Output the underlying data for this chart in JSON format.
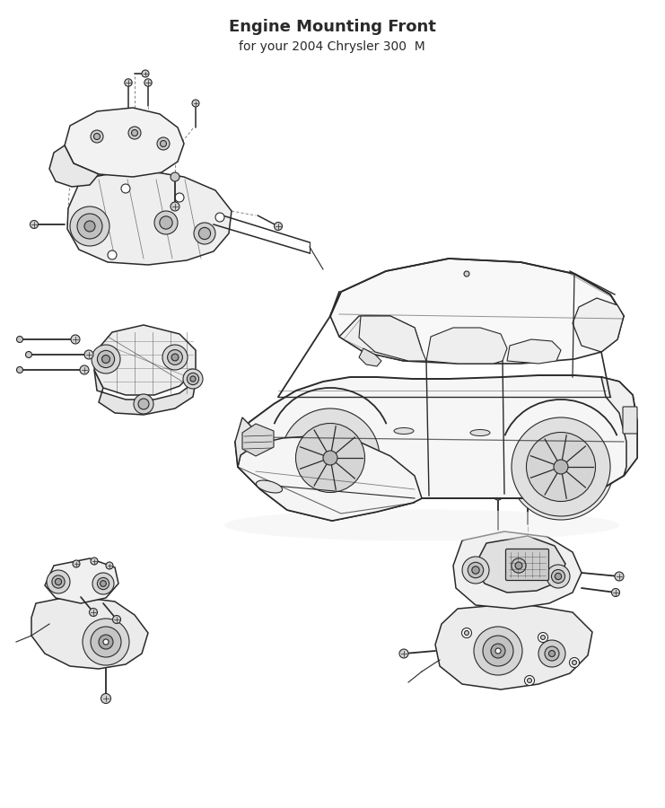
{
  "title": "Engine Mounting Front",
  "subtitle": "for your 2004 Chrysler 300  M",
  "bg_color": "#ffffff",
  "line_color": "#2a2a2a",
  "fig_width": 7.41,
  "fig_height": 9.0,
  "dpi": 100,
  "car": {
    "body_color": "#f7f7f7",
    "detail_color": "#1a1a1a"
  }
}
